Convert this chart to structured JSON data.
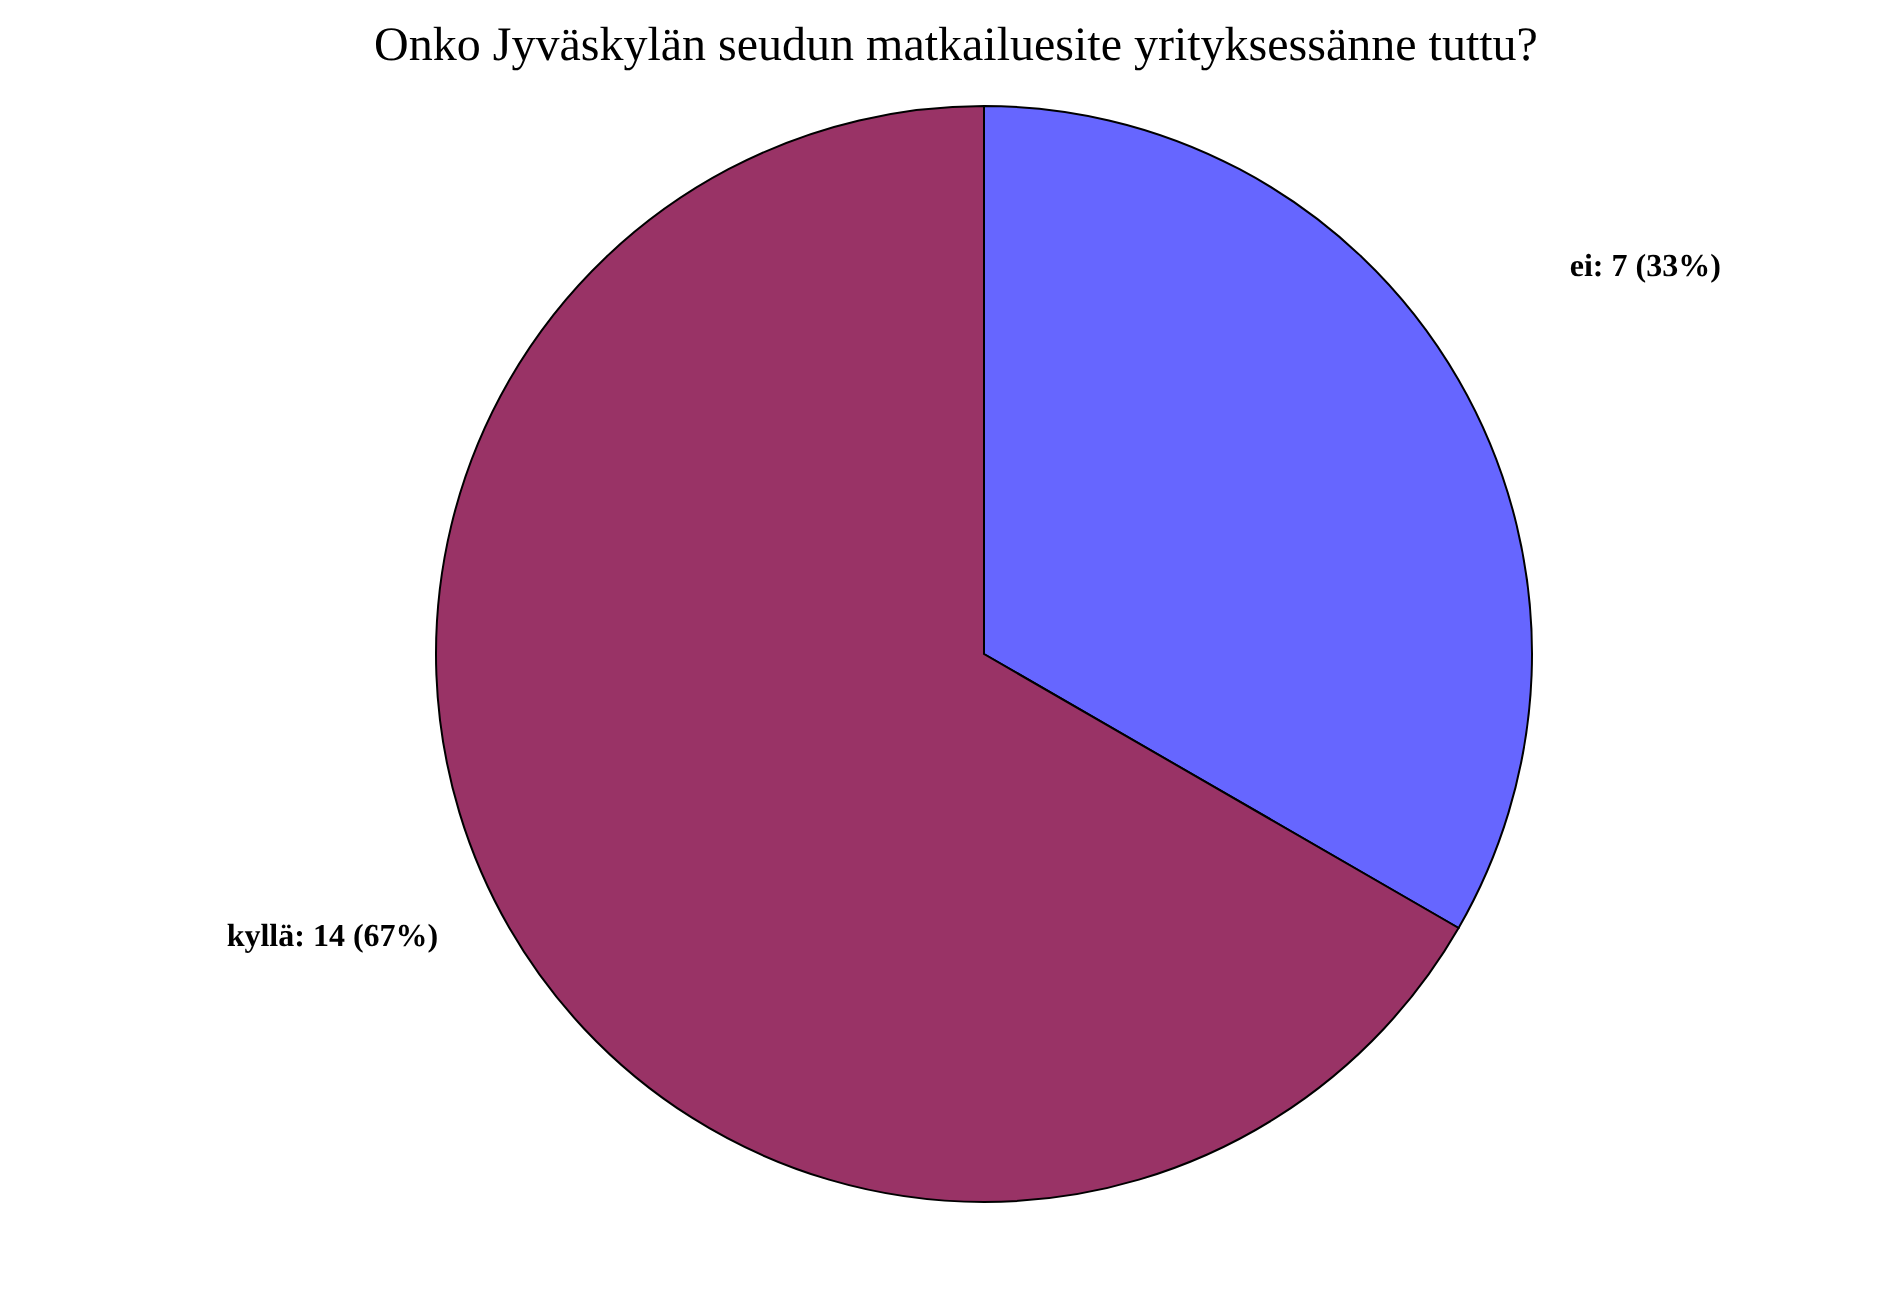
{
  "chart_data": {
    "type": "pie",
    "title": "Onko Jyväskylän seudun matkailuesite yrityksessänne tuttu?",
    "categories": [
      "ei",
      "kyllä"
    ],
    "values": [
      7,
      14
    ],
    "colors": [
      "#6666ff",
      "#993366"
    ],
    "value_labels": [
      "7 (33%)",
      "14 (67%)"
    ],
    "legend": false
  }
}
